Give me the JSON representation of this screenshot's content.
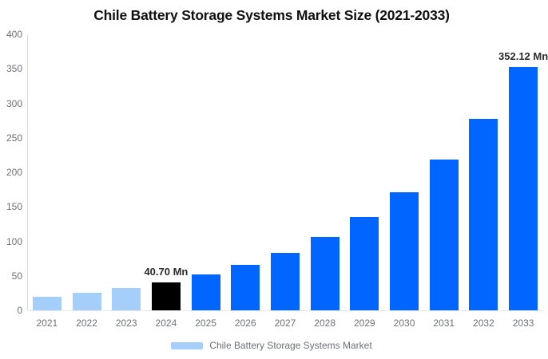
{
  "chart_data": {
    "type": "bar",
    "title": "Chile Battery Storage Systems Market Size (2021-2033)",
    "categories": [
      "2021",
      "2022",
      "2023",
      "2024",
      "2025",
      "2026",
      "2027",
      "2028",
      "2029",
      "2030",
      "2031",
      "2032",
      "2033"
    ],
    "values": [
      19.8,
      25.2,
      32.0,
      40.7,
      51.7,
      65.7,
      83.6,
      106.2,
      135.0,
      171.6,
      218.1,
      277.2,
      352.12
    ],
    "unit": "Mn",
    "data_labels": [
      null,
      null,
      null,
      "40.70 Mn",
      null,
      null,
      null,
      null,
      null,
      null,
      null,
      null,
      "352.12 Mn"
    ],
    "bar_colors": [
      "light",
      "light",
      "light",
      "highlight",
      "primary",
      "primary",
      "primary",
      "primary",
      "primary",
      "primary",
      "primary",
      "primary",
      "primary"
    ],
    "y_ticks": [
      0,
      50,
      100,
      150,
      200,
      250,
      300,
      350,
      400
    ],
    "ylim": [
      0,
      400
    ],
    "xlabel": "",
    "ylabel": "",
    "grid": false,
    "legend_position": "bottom"
  },
  "legend": {
    "label": "Chile Battery Storage Systems Market",
    "swatch_color": "#A6CEFB"
  },
  "colors": {
    "light_blue": "#A6CEFB",
    "primary_blue": "#0066FF",
    "highlight_black": "#000000",
    "axis_text": "#6E7079",
    "title_text": "#111111",
    "axis_line": "#DDDDDD",
    "baseline": "#E8E8E8",
    "data_label_text": "#2B2B2B",
    "background": "#FFFFFF"
  }
}
